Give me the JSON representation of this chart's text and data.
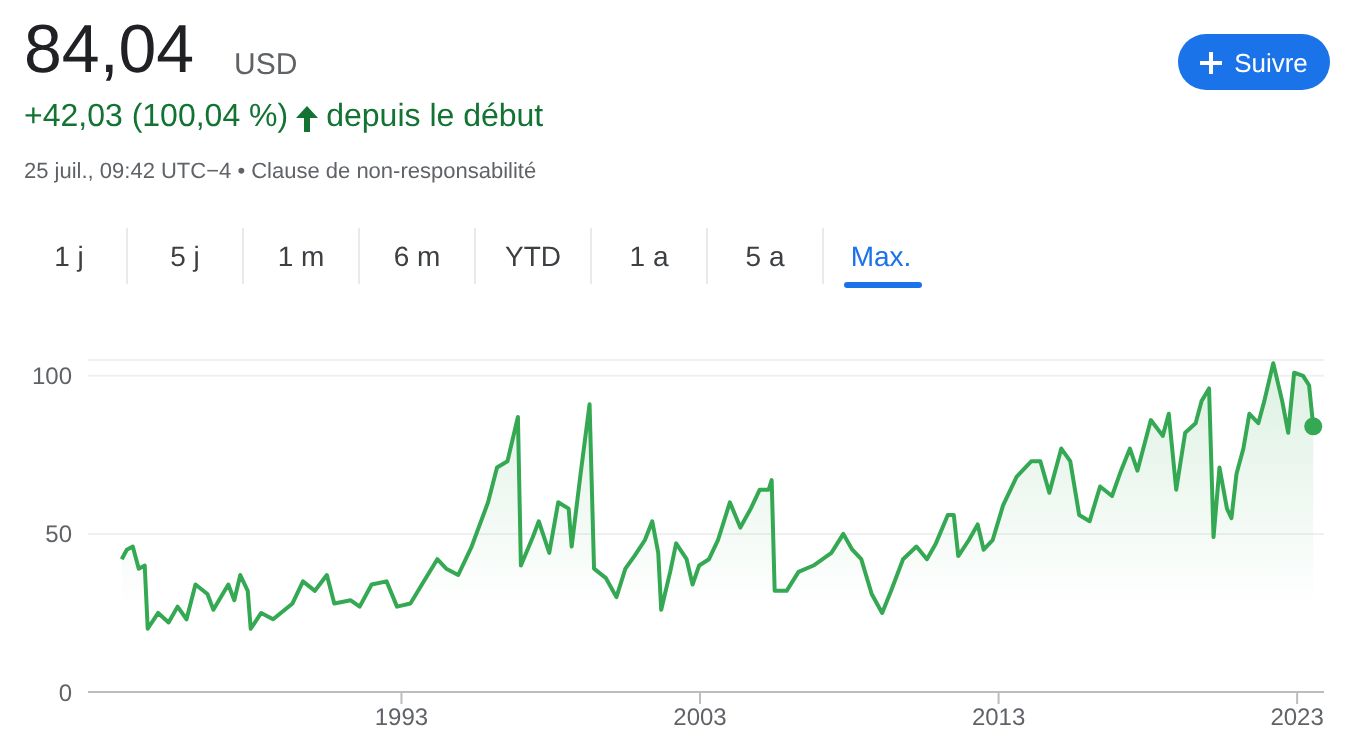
{
  "chart_data": {
    "type": "area",
    "title": "84,04",
    "annotations": [
      "USD",
      "+42,03 (100,04 %)",
      "depuis le début",
      "25 juil., 09:42 UTC−4 • Clause de non-responsabilité",
      "Suivre",
      "1 j",
      "5 j",
      "1 m",
      "6 m",
      "YTD",
      "1 a",
      "5 a",
      "Max."
    ],
    "x": [
      1983.63,
      1983.8,
      1984.0,
      1984.2,
      1984.4,
      1984.5,
      1984.85,
      1985.2,
      1985.5,
      1985.8,
      1986.1,
      1986.5,
      1986.7,
      1987.2,
      1987.4,
      1987.6,
      1987.85,
      1987.95,
      1988.3,
      1988.7,
      1989.35,
      1989.7,
      1990.1,
      1990.5,
      1990.75,
      1991.3,
      1991.6,
      1992.0,
      1992.5,
      1992.85,
      1993.3,
      1993.75,
      1994.2,
      1994.5,
      1994.9,
      1995.35,
      1995.9,
      1996.2,
      1996.55,
      1996.9,
      1997.0,
      1997.4,
      1997.6,
      1997.95,
      1998.25,
      1998.6,
      1998.7,
      1999.0,
      1999.3,
      1999.45,
      1999.85,
      2000.2,
      2000.5,
      2000.8,
      2001.15,
      2001.4,
      2001.6,
      2001.7,
      2002.0,
      2002.2,
      2002.55,
      2002.75,
      2002.97,
      2003.3,
      2003.6,
      2004.0,
      2004.35,
      2004.7,
      2005.0,
      2005.3,
      2005.4,
      2005.5,
      2005.9,
      2006.3,
      2006.8,
      2007.4,
      2007.8,
      2008.1,
      2008.4,
      2008.75,
      2009.1,
      2009.4,
      2009.8,
      2010.25,
      2010.6,
      2010.9,
      2011.3,
      2011.5,
      2011.65,
      2012.0,
      2012.3,
      2012.5,
      2012.8,
      2013.15,
      2013.6,
      2014.1,
      2014.4,
      2014.7,
      2015.1,
      2015.4,
      2015.7,
      2016.05,
      2016.4,
      2016.8,
      2017.1,
      2017.4,
      2017.65,
      2018.1,
      2018.5,
      2018.7,
      2018.95,
      2019.25,
      2019.6,
      2019.8,
      2020.05,
      2020.2,
      2020.4,
      2020.65,
      2020.8,
      2020.97,
      2021.2,
      2021.4,
      2021.7,
      2021.9,
      2022.2,
      2022.5,
      2022.7,
      2022.9,
      2023.2,
      2023.4,
      2023.54
    ],
    "series": [
      {
        "color": "#34a853",
        "values": [
          42,
          45,
          46,
          39,
          40,
          20,
          25,
          22,
          27,
          23,
          34,
          31,
          26,
          34,
          29,
          37,
          32,
          20,
          25,
          23,
          28,
          35,
          32,
          37,
          28,
          29,
          27,
          34,
          35,
          27,
          28,
          35,
          42,
          39,
          37,
          46,
          60,
          71,
          73,
          87,
          40,
          49,
          54,
          44,
          60,
          58,
          46,
          69,
          91,
          39,
          36,
          30,
          39,
          43,
          48,
          54,
          44,
          26,
          38,
          47,
          42,
          34,
          40,
          42,
          48,
          60,
          52,
          58,
          64,
          64,
          67,
          32,
          32,
          38,
          40,
          44,
          50,
          45,
          42,
          31,
          25,
          32,
          42,
          46,
          42,
          47,
          56,
          56,
          43,
          48,
          53,
          45,
          48,
          59,
          68,
          73,
          73,
          63,
          77,
          73,
          56,
          54,
          65,
          62,
          70,
          77,
          70,
          86,
          81,
          88,
          64,
          82,
          85,
          92,
          96,
          49,
          71,
          58,
          55,
          69,
          77,
          88,
          85,
          92,
          104,
          92,
          82,
          101,
          100,
          97,
          84.04
        ]
      }
    ],
    "xlim": [
      1982.5,
      2023.9
    ],
    "xticks": [
      1993,
      2003,
      2013,
      2023
    ],
    "ylim": [
      0,
      105
    ],
    "yticks": [
      0,
      50,
      100
    ],
    "grid": "y"
  }
}
